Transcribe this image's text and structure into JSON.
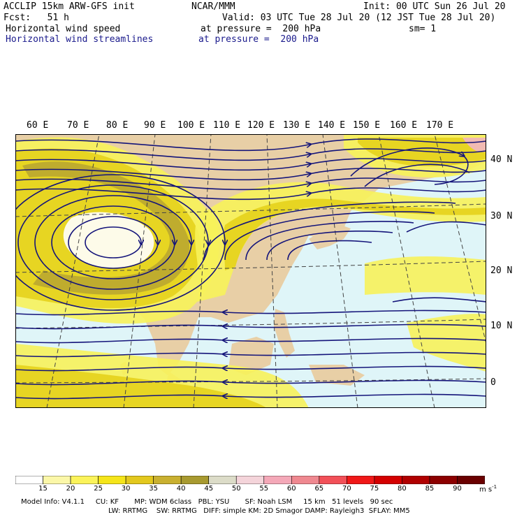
{
  "header": {
    "line1_left": "ACCLIP 15km ARW-GFS init",
    "line1_center": "NCAR/MMM",
    "line1_right": "Init: 00 UTC Sun 26 Jul 20",
    "line2_left": "Fcst:   51 h",
    "line2_right": "Valid: 03 UTC Tue 28 Jul 20 (12 JST Tue 28 Jul 20)",
    "line3_left": "Horizontal wind speed",
    "line3_center": "at pressure =  200 hPa",
    "line3_right": "sm= 1",
    "line4_left": "Horizontal wind streamlines",
    "line4_center": "at pressure =  200 hPa"
  },
  "map": {
    "lon_labels": [
      "60 E",
      "70 E",
      "80 E",
      "90 E",
      "100 E",
      "110 E",
      "120 E",
      "130 E",
      "140 E",
      "150 E",
      "160 E",
      "170 E"
    ],
    "lat_labels": [
      "40 N",
      "30 N",
      "20 N",
      "10 N",
      "0"
    ],
    "colors": {
      "ocean": "#dff5f8",
      "land": "#e8cfa6",
      "speed_light": "#f7f25a",
      "speed_mid": "#e6d21c",
      "speed_dark": "#b7a530",
      "speed_core": "#8a8a55",
      "speed_high": "#f2b7c3",
      "streamline": "#14147a"
    }
  },
  "colorbar": {
    "labels": [
      "15",
      "20",
      "25",
      "30",
      "35",
      "40",
      "45",
      "50",
      "55",
      "60",
      "65",
      "70",
      "75",
      "80",
      "85",
      "90"
    ],
    "unit": "m s",
    "unit_sup": "-1",
    "colors": [
      "#ffffff",
      "#fbf7a8",
      "#fbf35a",
      "#f5e51a",
      "#e3c81e",
      "#c9b030",
      "#a89a30",
      "#dcdcc8",
      "#f4d4da",
      "#f4a8b8",
      "#ef8890",
      "#f25058",
      "#f01818",
      "#d40000",
      "#b00000",
      "#8c0000",
      "#6a0000"
    ]
  },
  "footer": {
    "line1": "Model Info: V4.1.1     CU: KF       MP: WDM 6class   PBL: YSU       SF: Noah LSM     15 km   51 levels   90 sec",
    "line2": "LW: RRTMG    SW: RRTMG   DIFF: simple KM: 2D Smagor DAMP: Rayleigh3  SFLAY: MM5"
  }
}
